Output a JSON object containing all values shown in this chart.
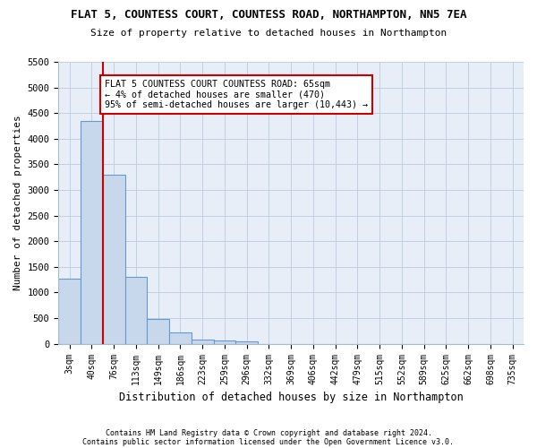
{
  "title1": "FLAT 5, COUNTESS COURT, COUNTESS ROAD, NORTHAMPTON, NN5 7EA",
  "title2": "Size of property relative to detached houses in Northampton",
  "xlabel": "Distribution of detached houses by size in Northampton",
  "ylabel": "Number of detached properties",
  "footnote1": "Contains HM Land Registry data © Crown copyright and database right 2024.",
  "footnote2": "Contains public sector information licensed under the Open Government Licence v3.0.",
  "bin_labels": [
    "3sqm",
    "40sqm",
    "76sqm",
    "113sqm",
    "149sqm",
    "186sqm",
    "223sqm",
    "259sqm",
    "296sqm",
    "332sqm",
    "369sqm",
    "406sqm",
    "442sqm",
    "479sqm",
    "515sqm",
    "552sqm",
    "589sqm",
    "625sqm",
    "662sqm",
    "698sqm",
    "735sqm"
  ],
  "bar_heights": [
    1270,
    4350,
    3300,
    1300,
    480,
    230,
    80,
    60,
    50,
    0,
    0,
    0,
    0,
    0,
    0,
    0,
    0,
    0,
    0,
    0
  ],
  "bar_color": "#c8d8ec",
  "bar_edge_color": "#6699cc",
  "grid_color": "#bbccdd",
  "bg_color": "#e8eef8",
  "property_line_x": 1.5,
  "annotation_text": "FLAT 5 COUNTESS COURT COUNTESS ROAD: 65sqm\n← 4% of detached houses are smaller (470)\n95% of semi-detached houses are larger (10,443) →",
  "annotation_box_color": "#ffffff",
  "annotation_border_color": "#cc0000",
  "ylim": [
    0,
    5500
  ],
  "yticks": [
    0,
    500,
    1000,
    1500,
    2000,
    2500,
    3000,
    3500,
    4000,
    4500,
    5000,
    5500
  ]
}
